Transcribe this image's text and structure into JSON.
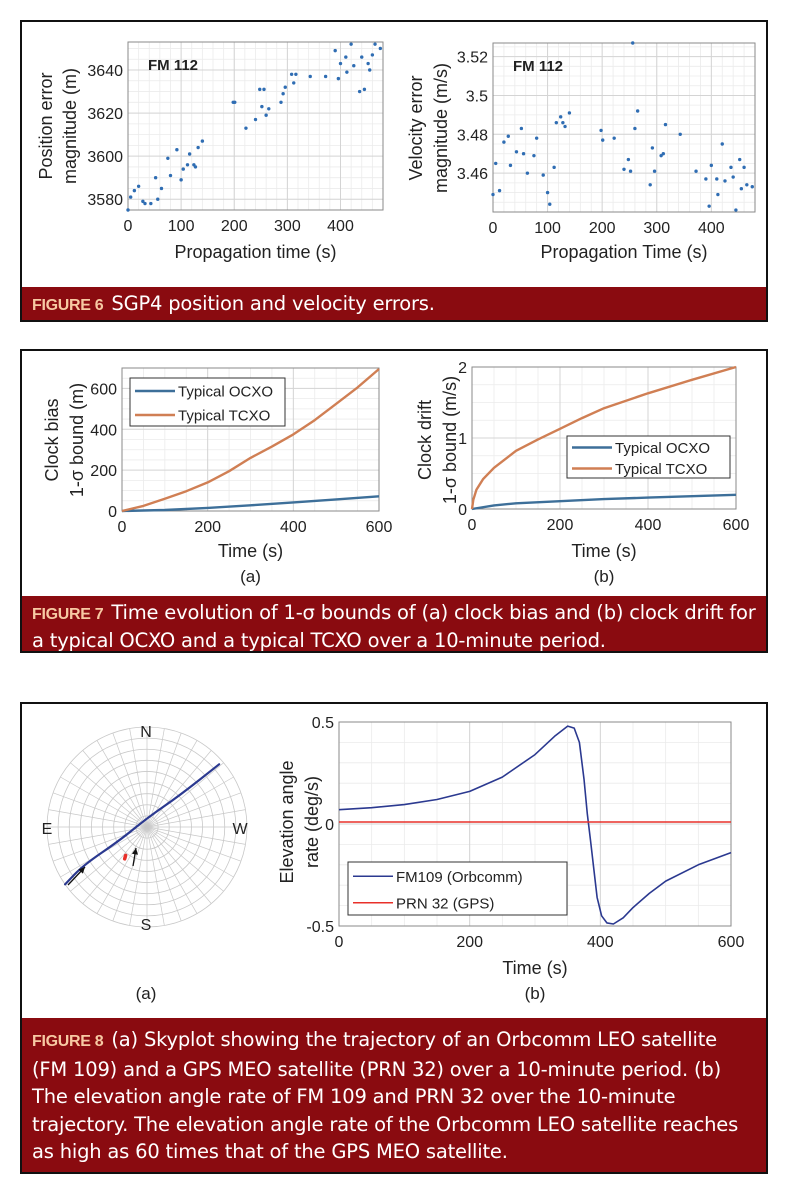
{
  "figures": [
    {
      "label": "FIGURE 6",
      "caption": "SGP4 position and velocity errors."
    },
    {
      "label": "FIGURE 7",
      "caption": "Time evolution of 1-σ bounds of (a) clock bias and (b) clock drift for a typical OCXO and a typical TCXO over a 10-minute period."
    },
    {
      "label": "FIGURE 8",
      "caption": "(a) Skyplot showing the trajectory of an Orbcomm LEO satellite (FM 109) and a GPS MEO satellite (PRN 32) over a 10-minute period. (b) The elevation angle rate of FM 109 and PRN 32 over the 10-minute trajectory. The elevation angle rate of the Orbcomm LEO satellite reaches as high as 60 times that of the GPS MEO satellite."
    }
  ],
  "colors": {
    "caption_bg": "#8a0b10",
    "caption_label": "#f7c9a3",
    "scatter": "#2f6db3",
    "ocxo": "#3d6f99",
    "tcxo": "#d07f54",
    "fm109": "#2b3990",
    "prn32": "#e8302a"
  },
  "chart_data": [
    {
      "type": "scatter",
      "annotation": "FM 112",
      "xlabel": "Propagation time (s)",
      "ylabel": [
        "Position error",
        "magnitude (m)"
      ],
      "xlim": [
        0,
        480
      ],
      "ylim": [
        3575,
        3653
      ],
      "xticks": [
        0,
        100,
        200,
        300,
        400
      ],
      "yticks": [
        3580,
        3600,
        3620,
        3640
      ],
      "grid": true,
      "series": [
        {
          "color": "#2f6db3",
          "points": [
            [
              0,
              3575
            ],
            [
              5,
              3581
            ],
            [
              12,
              3584
            ],
            [
              20,
              3586
            ],
            [
              28,
              3579
            ],
            [
              32,
              3578
            ],
            [
              43,
              3578
            ],
            [
              52,
              3590
            ],
            [
              56,
              3580
            ],
            [
              63,
              3585
            ],
            [
              75,
              3599
            ],
            [
              80,
              3591
            ],
            [
              92,
              3603
            ],
            [
              100,
              3589
            ],
            [
              104,
              3594
            ],
            [
              112,
              3596
            ],
            [
              116,
              3601
            ],
            [
              124,
              3596
            ],
            [
              127,
              3595
            ],
            [
              132,
              3604
            ],
            [
              140,
              3607
            ],
            [
              198,
              3625
            ],
            [
              201,
              3625
            ],
            [
              222,
              3613
            ],
            [
              240,
              3617
            ],
            [
              248,
              3631
            ],
            [
              252,
              3623
            ],
            [
              256,
              3631
            ],
            [
              260,
              3619
            ],
            [
              265,
              3622
            ],
            [
              288,
              3625
            ],
            [
              292,
              3629
            ],
            [
              296,
              3632
            ],
            [
              308,
              3638
            ],
            [
              312,
              3634
            ],
            [
              316,
              3638
            ],
            [
              343,
              3637
            ],
            [
              372,
              3637
            ],
            [
              390,
              3649
            ],
            [
              396,
              3636
            ],
            [
              400,
              3643
            ],
            [
              410,
              3646
            ],
            [
              412,
              3639
            ],
            [
              420,
              3652
            ],
            [
              425,
              3642
            ],
            [
              436,
              3630
            ],
            [
              440,
              3646
            ],
            [
              445,
              3631
            ],
            [
              452,
              3643
            ],
            [
              455,
              3640
            ],
            [
              460,
              3647
            ],
            [
              465,
              3652
            ],
            [
              475,
              3650
            ]
          ]
        }
      ]
    },
    {
      "type": "scatter",
      "annotation": "FM 112",
      "xlabel": "Propagation Time (s)",
      "ylabel": [
        "Velocity error",
        "magnitude (m/s)"
      ],
      "xlim": [
        0,
        480
      ],
      "ylim": [
        3.44,
        3.527
      ],
      "xticks": [
        0,
        100,
        200,
        300,
        400
      ],
      "yticks": [
        3.46,
        3.48,
        3.5,
        3.52
      ],
      "grid": true,
      "series": [
        {
          "color": "#2f6db3",
          "points": [
            [
              0,
              3.449
            ],
            [
              5,
              3.465
            ],
            [
              12,
              3.451
            ],
            [
              20,
              3.476
            ],
            [
              28,
              3.479
            ],
            [
              32,
              3.464
            ],
            [
              43,
              3.471
            ],
            [
              52,
              3.483
            ],
            [
              56,
              3.47
            ],
            [
              63,
              3.46
            ],
            [
              75,
              3.469
            ],
            [
              80,
              3.478
            ],
            [
              92,
              3.459
            ],
            [
              100,
              3.45
            ],
            [
              104,
              3.444
            ],
            [
              112,
              3.463
            ],
            [
              116,
              3.486
            ],
            [
              124,
              3.489
            ],
            [
              128,
              3.486
            ],
            [
              132,
              3.484
            ],
            [
              140,
              3.491
            ],
            [
              198,
              3.482
            ],
            [
              201,
              3.477
            ],
            [
              222,
              3.478
            ],
            [
              240,
              3.462
            ],
            [
              248,
              3.467
            ],
            [
              252,
              3.461
            ],
            [
              256,
              3.527
            ],
            [
              260,
              3.483
            ],
            [
              265,
              3.492
            ],
            [
              288,
              3.454
            ],
            [
              292,
              3.473
            ],
            [
              296,
              3.461
            ],
            [
              308,
              3.469
            ],
            [
              312,
              3.47
            ],
            [
              316,
              3.485
            ],
            [
              343,
              3.48
            ],
            [
              372,
              3.461
            ],
            [
              390,
              3.457
            ],
            [
              396,
              3.443
            ],
            [
              400,
              3.464
            ],
            [
              410,
              3.457
            ],
            [
              412,
              3.449
            ],
            [
              420,
              3.475
            ],
            [
              425,
              3.456
            ],
            [
              436,
              3.463
            ],
            [
              440,
              3.458
            ],
            [
              445,
              3.441
            ],
            [
              452,
              3.467
            ],
            [
              455,
              3.452
            ],
            [
              460,
              3.463
            ],
            [
              465,
              3.454
            ],
            [
              475,
              3.453
            ]
          ]
        }
      ]
    },
    {
      "type": "line",
      "panel": "(a)",
      "xlabel": "Time (s)",
      "ylabel": [
        "Clock bias",
        "1-σ bound (m)"
      ],
      "xlim": [
        0,
        600
      ],
      "ylim": [
        0,
        700
      ],
      "xticks": [
        0,
        200,
        400,
        600
      ],
      "yticks": [
        0,
        200,
        400,
        600
      ],
      "grid": true,
      "legend": "top-left",
      "series": [
        {
          "name": "Typical OCXO",
          "color": "#3d6f99",
          "points": [
            [
              0,
              0
            ],
            [
              100,
              5
            ],
            [
              200,
              15
            ],
            [
              300,
              28
            ],
            [
              400,
              42
            ],
            [
              500,
              57
            ],
            [
              600,
              72
            ]
          ]
        },
        {
          "name": "Typical TCXO",
          "color": "#d07f54",
          "points": [
            [
              0,
              0
            ],
            [
              50,
              25
            ],
            [
              100,
              60
            ],
            [
              150,
              97
            ],
            [
              200,
              140
            ],
            [
              250,
              195
            ],
            [
              300,
              260
            ],
            [
              350,
              315
            ],
            [
              400,
              375
            ],
            [
              450,
              445
            ],
            [
              500,
              525
            ],
            [
              550,
              605
            ],
            [
              600,
              695
            ]
          ]
        }
      ]
    },
    {
      "type": "line",
      "panel": "(b)",
      "xlabel": "Time (s)",
      "ylabel": [
        "Clock drift",
        "1-σ bound (m/s)"
      ],
      "xlim": [
        0,
        600
      ],
      "ylim": [
        0,
        2
      ],
      "xticks": [
        0,
        200,
        400,
        600
      ],
      "yticks": [
        0,
        1,
        2
      ],
      "grid": true,
      "legend": "center-right",
      "series": [
        {
          "name": "Typical OCXO",
          "color": "#3d6f99",
          "points": [
            [
              0,
              0
            ],
            [
              50,
              0.05
            ],
            [
              100,
              0.08
            ],
            [
              200,
              0.11
            ],
            [
              300,
              0.14
            ],
            [
              400,
              0.16
            ],
            [
              500,
              0.18
            ],
            [
              600,
              0.2
            ]
          ]
        },
        {
          "name": "Typical TCXO",
          "color": "#d07f54",
          "points": [
            [
              0,
              0
            ],
            [
              3,
              0.13
            ],
            [
              10,
              0.27
            ],
            [
              25,
              0.42
            ],
            [
              50,
              0.58
            ],
            [
              100,
              0.82
            ],
            [
              150,
              0.98
            ],
            [
              200,
              1.13
            ],
            [
              250,
              1.28
            ],
            [
              300,
              1.42
            ],
            [
              400,
              1.63
            ],
            [
              500,
              1.82
            ],
            [
              600,
              2.0
            ]
          ]
        }
      ]
    },
    {
      "type": "line",
      "panel": "(b)",
      "xlabel": "Time (s)",
      "ylabel": [
        "Elevation angle",
        "rate (deg/s)"
      ],
      "xlim": [
        0,
        600
      ],
      "ylim": [
        -0.5,
        0.5
      ],
      "xticks": [
        0,
        200,
        400,
        600
      ],
      "yticks": [
        -0.5,
        0,
        0.5
      ],
      "grid": true,
      "legend": "bottom-left",
      "series": [
        {
          "name": "FM109 (Orbcomm)",
          "color": "#2b3990",
          "points": [
            [
              0,
              0.07
            ],
            [
              50,
              0.08
            ],
            [
              100,
              0.095
            ],
            [
              150,
              0.12
            ],
            [
              200,
              0.16
            ],
            [
              250,
              0.23
            ],
            [
              300,
              0.34
            ],
            [
              330,
              0.43
            ],
            [
              350,
              0.48
            ],
            [
              360,
              0.47
            ],
            [
              368,
              0.4
            ],
            [
              375,
              0.22
            ],
            [
              380,
              0.05
            ],
            [
              385,
              -0.08
            ],
            [
              390,
              -0.22
            ],
            [
              395,
              -0.36
            ],
            [
              402,
              -0.45
            ],
            [
              410,
              -0.485
            ],
            [
              420,
              -0.49
            ],
            [
              435,
              -0.46
            ],
            [
              450,
              -0.41
            ],
            [
              475,
              -0.34
            ],
            [
              500,
              -0.28
            ],
            [
              550,
              -0.2
            ],
            [
              600,
              -0.14
            ]
          ]
        },
        {
          "name": "PRN 32 (GPS)",
          "color": "#e8302a",
          "points": [
            [
              0,
              0.01
            ],
            [
              600,
              0.01
            ]
          ]
        }
      ]
    },
    {
      "type": "skyplot",
      "panel": "(a)",
      "direction_labels": {
        "north": "N",
        "south": "S",
        "east": "E",
        "west": "W"
      },
      "series": [
        {
          "name": "FM 109",
          "color": "#2b3990",
          "points_az_el": [
            [
              125,
              0
            ],
            [
              121,
              23
            ],
            [
              116,
              63
            ],
            [
              0,
              82
            ],
            [
              314,
              49
            ],
            [
              311,
              4
            ]
          ]
        },
        {
          "name": "PRN 32",
          "color": "#e8302a",
          "points_az_el": [
            [
              143,
              58
            ],
            [
              145,
              55
            ]
          ]
        }
      ]
    }
  ]
}
